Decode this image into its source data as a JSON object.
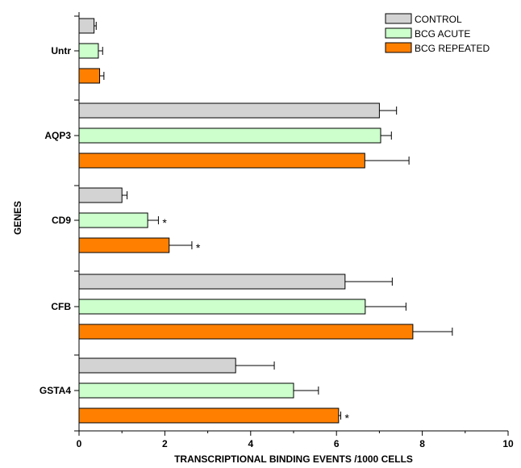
{
  "chart_data": {
    "type": "bar",
    "orientation": "horizontal",
    "categories": [
      "Untr",
      "AQP3",
      "CD9",
      "CFB",
      "GSTA4"
    ],
    "series": [
      {
        "name": "CONTROL",
        "color": "#d3d3d3",
        "values": [
          0.35,
          7.0,
          1.0,
          6.2,
          3.65
        ],
        "errors": [
          0.05,
          0.4,
          0.12,
          1.1,
          0.9
        ],
        "significant": [
          false,
          false,
          false,
          false,
          false
        ]
      },
      {
        "name": "BCG ACUTE",
        "color": "#ccffcc",
        "values": [
          0.45,
          7.03,
          1.6,
          6.67,
          5.0
        ],
        "errors": [
          0.1,
          0.25,
          0.25,
          0.95,
          0.58
        ],
        "significant": [
          false,
          false,
          true,
          false,
          false
        ]
      },
      {
        "name": "BCG REPEATED",
        "color": "#ff8000",
        "values": [
          0.48,
          6.66,
          2.1,
          7.78,
          6.05
        ],
        "errors": [
          0.1,
          1.03,
          0.53,
          0.92,
          0.05
        ],
        "significant": [
          false,
          false,
          true,
          false,
          true
        ]
      }
    ],
    "significance_marker": "*",
    "xlabel": "TRANSCRIPTIONAL BINDING EVENTS /1000 CELLS",
    "ylabel": "GENES",
    "xlim": [
      0,
      10
    ],
    "xticks": [
      "0",
      "2",
      "4",
      "6",
      "8",
      "10"
    ],
    "grid": false,
    "legend_position": "top-right"
  }
}
